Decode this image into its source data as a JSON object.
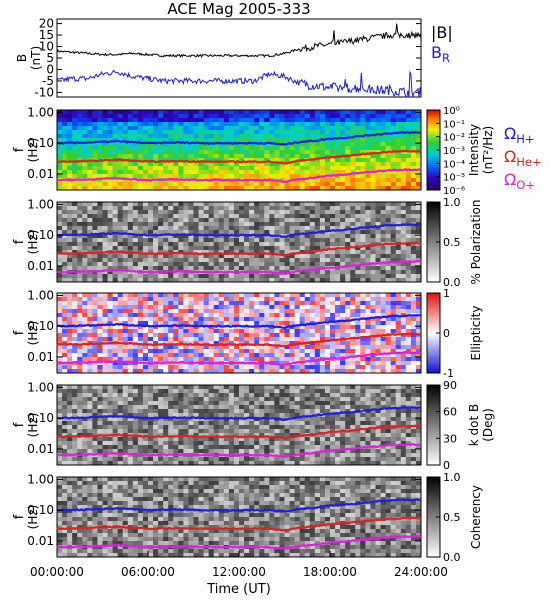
{
  "title": "ACE Mag 2005-333",
  "x_axis": {
    "label": "Time (UT)",
    "ticks": [
      "00:00:00",
      "06:00:00",
      "12:00:00",
      "18:00:00",
      "24:00:00"
    ],
    "range_hours": [
      0,
      24
    ]
  },
  "field_panel": {
    "ylabel": "B (nT)",
    "yticks": [
      "20",
      "15",
      "10",
      "5",
      "0",
      "-5",
      "-10"
    ],
    "legend": [
      {
        "label": "|B|",
        "color": "#000000"
      },
      {
        "label": "B_R",
        "color": "#1f1fd8"
      }
    ]
  },
  "frequency_ticks": [
    "1.00",
    "0.10",
    "0.01"
  ],
  "frequency_ylabel": "f (Hz)",
  "gyro_legend": [
    {
      "label": "Ω_H+",
      "color": "#1f1fd8"
    },
    {
      "label": "Ω_He+",
      "color": "#dd2222"
    },
    {
      "label": "Ω_O+",
      "color": "#e020e0"
    }
  ],
  "spectral_panels": [
    {
      "id": "intensity",
      "colormap": "rainbow",
      "colorbar_label": "Intensity (nT²/Hz)",
      "colorbar_ticks": [
        "10⁰",
        "10⁻¹",
        "10⁻²",
        "10⁻³",
        "10⁻⁴",
        "10⁻⁵",
        "10⁻⁶"
      ]
    },
    {
      "id": "polarization",
      "colormap": "gray",
      "colorbar_label": "% Polarization",
      "colorbar_ticks": [
        "1.0",
        "0.5",
        "0.0"
      ]
    },
    {
      "id": "ellipticity",
      "colormap": "redblue",
      "colorbar_label": "Ellipticity",
      "colorbar_ticks": [
        "1",
        "0",
        "-1"
      ]
    },
    {
      "id": "kdotb",
      "colormap": "gray",
      "colorbar_label": "k dot B (Deg)",
      "colorbar_ticks": [
        "90",
        "60",
        "30",
        "0"
      ]
    },
    {
      "id": "coherency",
      "colormap": "gray",
      "colorbar_label": "Coherency",
      "colorbar_ticks": [
        "1.0",
        "0.5",
        "0.0"
      ]
    }
  ],
  "chart_data": [
    {
      "type": "line",
      "ylim": [
        -12,
        22
      ],
      "series": [
        {
          "name": "|B|",
          "x": [
            0,
            1,
            2,
            3,
            4,
            5,
            6,
            7,
            8,
            9,
            10,
            11,
            12,
            13,
            14,
            15,
            16,
            17,
            18,
            19,
            20,
            21,
            22,
            23,
            24
          ],
          "values": [
            8,
            7.5,
            7,
            6.5,
            6.5,
            7,
            6.5,
            6,
            6,
            6,
            6,
            6,
            6,
            6,
            6,
            7,
            9,
            10,
            11,
            12,
            13,
            14,
            15,
            15,
            15
          ]
        },
        {
          "name": "B_R",
          "x": [
            0,
            1,
            2,
            3,
            4,
            5,
            6,
            7,
            8,
            9,
            10,
            11,
            12,
            13,
            14,
            15,
            16,
            17,
            18,
            19,
            20,
            21,
            22,
            23,
            24
          ],
          "values": [
            -5,
            -4,
            -4,
            -2,
            -1,
            -3,
            -4,
            -5,
            -5,
            -5,
            -5,
            -5,
            -5,
            -5,
            -2,
            -3,
            -6,
            -7,
            -8,
            -8,
            -8,
            -9,
            -9,
            -10,
            -10
          ]
        }
      ]
    },
    {
      "type": "line",
      "ylim": [
        0.003,
        1.2
      ],
      "y_scale": "log",
      "series": [
        {
          "name": "Ω_H+",
          "x": [
            0,
            2,
            4,
            6,
            8,
            10,
            12,
            13,
            14,
            15,
            16,
            17,
            18,
            19,
            20,
            21,
            22,
            23,
            24
          ],
          "values": [
            0.1,
            0.105,
            0.115,
            0.1,
            0.105,
            0.1,
            0.1,
            0.1,
            0.1,
            0.09,
            0.11,
            0.12,
            0.14,
            0.15,
            0.17,
            0.19,
            0.21,
            0.22,
            0.22
          ]
        },
        {
          "name": "Ω_He+",
          "x": [
            0,
            2,
            4,
            6,
            8,
            10,
            12,
            13,
            14,
            15,
            16,
            17,
            18,
            19,
            20,
            21,
            22,
            23,
            24
          ],
          "values": [
            0.025,
            0.026,
            0.029,
            0.025,
            0.026,
            0.025,
            0.025,
            0.025,
            0.025,
            0.022,
            0.027,
            0.03,
            0.035,
            0.038,
            0.043,
            0.048,
            0.053,
            0.055,
            0.055
          ]
        },
        {
          "name": "Ω_O+",
          "x": [
            0,
            2,
            4,
            6,
            8,
            10,
            12,
            13,
            14,
            15,
            16,
            17,
            18,
            19,
            20,
            21,
            22,
            23,
            24
          ],
          "values": [
            0.0063,
            0.0066,
            0.0072,
            0.0063,
            0.0066,
            0.0063,
            0.0063,
            0.0063,
            0.0063,
            0.0055,
            0.0068,
            0.0075,
            0.0088,
            0.0095,
            0.0108,
            0.012,
            0.0133,
            0.0138,
            0.0138
          ]
        }
      ]
    }
  ]
}
